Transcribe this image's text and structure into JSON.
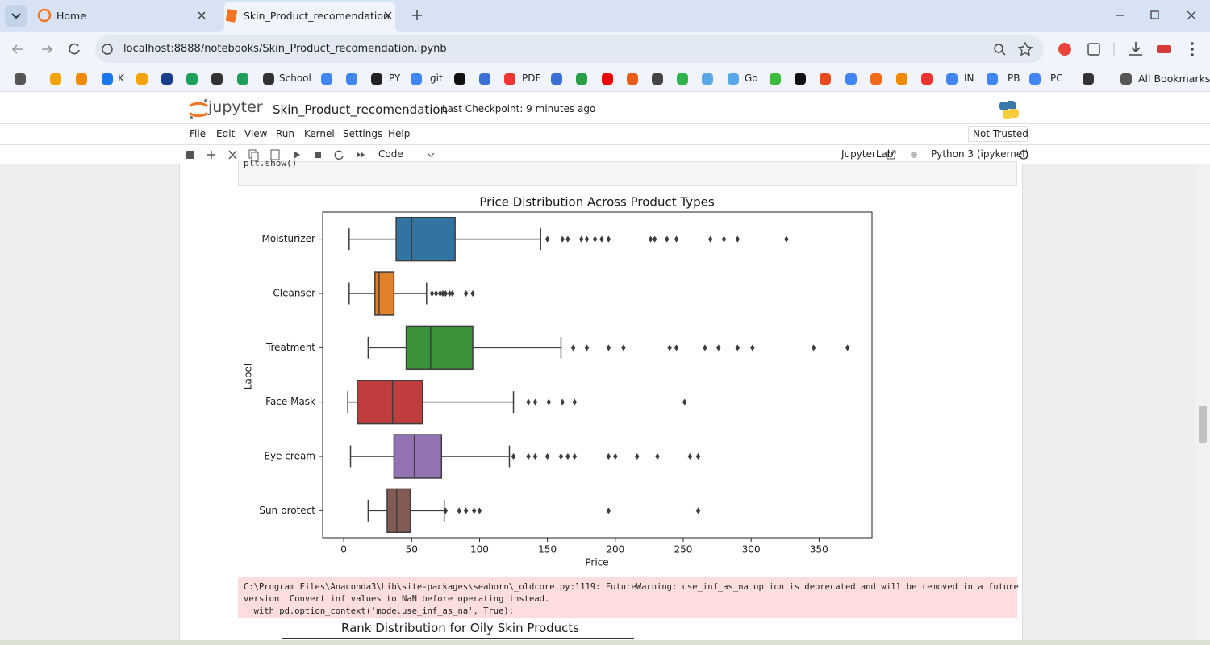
{
  "browser": {
    "tabs": [
      "Home",
      "Skin_Product_recomendation"
    ],
    "url": "localhost:8888/notebooks/Skin_Product_recomendation.ipynb",
    "bookmarks": [
      "K",
      "School",
      "PY",
      "git",
      "PDF",
      "Go",
      "IN",
      "PB",
      "PC"
    ],
    "all_bookmarks": "All Bookmarks"
  },
  "jupyter": {
    "logo": "jupyter",
    "notebook": "Skin_Product_recomendation",
    "checkpoint": "Last Checkpoint: 9 minutes ago",
    "menu": [
      "File",
      "Edit",
      "View",
      "Run",
      "Kernel",
      "Settings",
      "Help"
    ],
    "trust": "Not Trusted",
    "cell_type": "Code",
    "lab_link": "JupyterLab",
    "kernel": "Python 3 (ipykernel)"
  },
  "cell": {
    "code": "plt.show()",
    "warning": [
      "C:\\Program Files\\Anaconda3\\Lib\\site-packages\\seaborn\\_oldcore.py:1119: FutureWarning: use_inf_as_na option is deprecated and will be removed in a future",
      "version. Convert inf values to NaN before operating instead.",
      "  with pd.option_context('mode.use_inf_as_na', True):"
    ],
    "next_chart_title": "Rank Distribution for Oily Skin Products"
  },
  "chart_data": {
    "type": "box",
    "title": "Price Distribution Across Product Types",
    "x_label": "Price",
    "y_label": "Label",
    "categories": [
      "Moisturizer",
      "Cleanser",
      "Treatment",
      "Face Mask",
      "Eye cream",
      "Sun protect"
    ],
    "colors": [
      "#3274a1",
      "#e1812c",
      "#3a923a",
      "#c03d3e",
      "#9372b2",
      "#845b53"
    ],
    "boxes": [
      {
        "min": 4,
        "q1": 38.6,
        "median": 50,
        "q3": 82,
        "max": 145,
        "outliers": [
          150,
          161,
          165,
          175,
          179,
          185,
          190,
          195,
          226,
          229,
          238,
          245,
          270,
          280,
          290,
          326
        ]
      },
      {
        "min": 4,
        "q1": 23,
        "median": 26,
        "q3": 37,
        "max": 61,
        "outliers": [
          65,
          68,
          71,
          73,
          75,
          78,
          80,
          90,
          95
        ]
      },
      {
        "min": 18,
        "q1": 46,
        "median": 64,
        "q3": 95,
        "max": 160,
        "outliers": [
          169,
          179,
          195,
          206,
          240,
          245,
          266,
          276,
          290,
          301,
          346,
          371
        ]
      },
      {
        "min": 3,
        "q1": 10,
        "median": 36,
        "q3": 58,
        "max": 125,
        "outliers": [
          136,
          141,
          151,
          161,
          170,
          251
        ]
      },
      {
        "min": 5,
        "q1": 37,
        "median": 52,
        "q3": 72,
        "max": 122,
        "outliers": [
          125,
          136,
          141,
          150,
          160,
          165,
          170,
          195,
          200,
          216,
          231,
          255,
          261
        ]
      },
      {
        "min": 18,
        "q1": 32,
        "median": 39,
        "q3": 49,
        "max": 74,
        "outliers": [
          75,
          85,
          90,
          96,
          100,
          195,
          261
        ]
      }
    ],
    "xlim": [
      -15.5,
      389
    ],
    "xticks": [
      0,
      50,
      100,
      150,
      200,
      250,
      300,
      350
    ]
  }
}
